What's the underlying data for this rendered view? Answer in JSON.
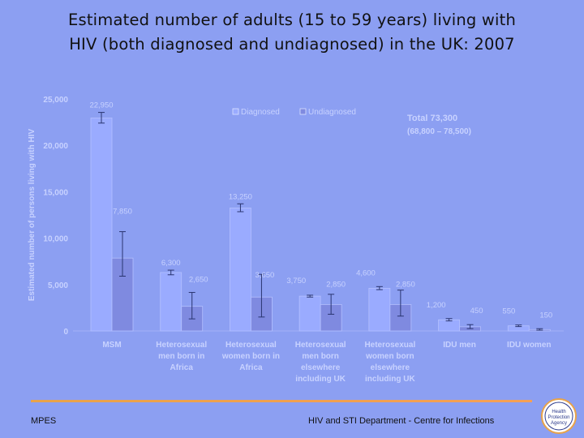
{
  "slide": {
    "title_line1": "Estimated number of adults (15 to 59 years) living with",
    "title_line2": "HIV (both diagnosed and undiagnosed) in the UK: 2007",
    "footer_left": "MPES",
    "footer_right": "HIV and STI Department - Centre for Infections",
    "logo_text": [
      "Health",
      "Protection",
      "Agency"
    ]
  },
  "colors": {
    "background": "#8c9ff2",
    "diagnosed": "#9aabff",
    "undiagnosed": "#7f8ae0",
    "grid_text": "#c8d2ff",
    "accent_rule": "#f2a050"
  },
  "chart_data": {
    "type": "bar",
    "ylabel": "Estimated number of persons living with HIV",
    "ylim": [
      0,
      25000
    ],
    "yticks": [
      "0",
      "5,000",
      "10,000",
      "15,000",
      "20,000",
      "25,000"
    ],
    "ytick_values": [
      0,
      5000,
      10000,
      15000,
      20000,
      25000
    ],
    "legend_position": "top-center",
    "categories": [
      [
        "MSM"
      ],
      [
        "Heterosexual",
        "men born in",
        "Africa"
      ],
      [
        "Heterosexual",
        "women born in",
        "Africa"
      ],
      [
        "Heterosexual",
        "men born",
        "elsewhere",
        "including UK"
      ],
      [
        "Heterosexual",
        "women born",
        "elsewhere",
        "including UK"
      ],
      [
        "IDU men"
      ],
      [
        "IDU women"
      ]
    ],
    "series": [
      {
        "name": "Diagnosed",
        "values": [
          22950,
          6300,
          13250,
          3750,
          4600,
          1200,
          550
        ],
        "labels": [
          "22,950",
          "6,300",
          "13,250",
          "3,750",
          "4,600",
          "1,200",
          "550"
        ],
        "err_low": [
          22400,
          6050,
          12850,
          3650,
          4450,
          1080,
          470
        ],
        "err_high": [
          23550,
          6550,
          13700,
          3850,
          4780,
          1330,
          640
        ]
      },
      {
        "name": "Undiagnosed",
        "values": [
          7850,
          2650,
          3650,
          2850,
          2850,
          450,
          150
        ],
        "labels": [
          "7,850",
          "2,650",
          "3,650",
          "2,850",
          "2,850",
          "450",
          "150"
        ],
        "err_low": [
          5900,
          1300,
          1500,
          1800,
          1600,
          250,
          80
        ],
        "err_high": [
          10700,
          4150,
          6100,
          3950,
          4400,
          680,
          240
        ]
      }
    ],
    "annotation_line1": "Total 73,300",
    "annotation_line2": "(68,800 – 78,500)"
  }
}
